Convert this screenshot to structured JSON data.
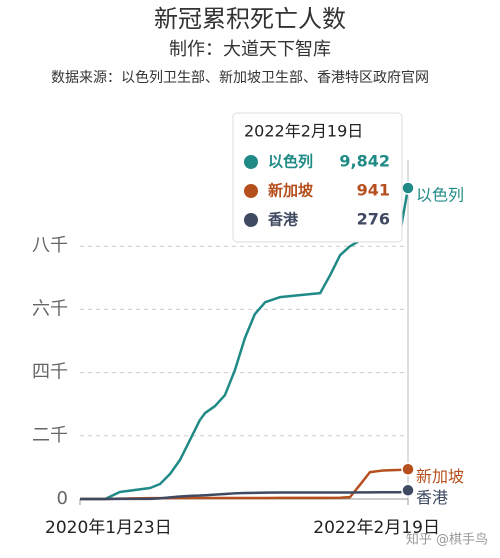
{
  "chart_data": {
    "type": "line",
    "title": "新冠累积死亡人数",
    "subtitle": "制作：大道天下智库",
    "source": "数据来源：以色列卫生部、新加坡卫生部、香港特区政府官网",
    "x": [
      0,
      58,
      92,
      127,
      162,
      185,
      208,
      231,
      254,
      277,
      289,
      312,
      335,
      358,
      381,
      404,
      428,
      462,
      508,
      555,
      578,
      601,
      624,
      650,
      670,
      700,
      716,
      740,
      758
    ],
    "xlim": [
      0,
      758
    ],
    "xticks": [
      {
        "value": 0,
        "label": "2020年1月23日"
      },
      {
        "value": 758,
        "label": "2022年2月19日"
      }
    ],
    "ylim": [
      0,
      10000
    ],
    "yticks": [
      0,
      {
        "value": 2000,
        "label": "二千"
      },
      {
        "value": 4000,
        "label": "四千"
      },
      {
        "value": 6000,
        "label": "六千"
      },
      {
        "value": 8000,
        "label": "八千"
      }
    ],
    "grid": true,
    "series": [
      {
        "name": "以色列",
        "color": "#1f8a86",
        "values": [
          0,
          0,
          221,
          285,
          348,
          474,
          791,
          1233,
          1866,
          2498,
          2719,
          2941,
          3289,
          4079,
          5091,
          5850,
          6229,
          6387,
          6451,
          6514,
          7083,
          7715,
          8000,
          8200,
          8285,
          8300,
          8316,
          8443,
          9842
        ]
      },
      {
        "name": "新加坡",
        "color": "#b5501e",
        "values": [
          0,
          0,
          10,
          20,
          28,
          28,
          29,
          29,
          30,
          30,
          30,
          30,
          30,
          30,
          31,
          32,
          33,
          34,
          35,
          36,
          37,
          40,
          60,
          500,
          850,
          900,
          910,
          920,
          941
        ]
      },
      {
        "name": "香港",
        "color": "#3f4a62",
        "values": [
          0,
          0,
          2,
          4,
          5,
          20,
          50,
          80,
          100,
          110,
          120,
          140,
          160,
          180,
          190,
          195,
          200,
          205,
          205,
          205,
          205,
          205,
          206,
          208,
          210,
          212,
          213,
          215,
          276
        ]
      }
    ],
    "tooltip": {
      "title": "2022年2月19日",
      "rows": [
        {
          "name": "以色列",
          "value": 9842,
          "label": "9,842"
        },
        {
          "name": "新加坡",
          "value": 941,
          "label": "941"
        },
        {
          "name": "香港",
          "value": 276,
          "label": "276"
        }
      ]
    },
    "watermark": "知乎 @棋手鸟"
  }
}
